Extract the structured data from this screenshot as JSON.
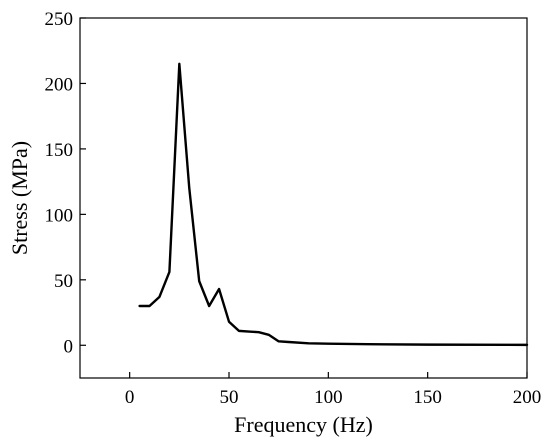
{
  "chart_data": {
    "type": "line",
    "title": "",
    "xlabel": "Frequency (Hz)",
    "ylabel": "Stress (MPa)",
    "xlim": [
      -25,
      200
    ],
    "ylim": [
      -25,
      250
    ],
    "xticks": [
      0,
      50,
      100,
      150,
      200
    ],
    "yticks": [
      0,
      50,
      100,
      150,
      200,
      250
    ],
    "grid": false,
    "legend": "none",
    "series": [
      {
        "color": "#000000",
        "x": [
          5,
          10,
          15,
          20,
          25,
          30,
          35,
          40,
          45,
          50,
          55,
          60,
          65,
          70,
          75,
          80,
          90,
          100,
          120,
          150,
          200
        ],
        "y": [
          30,
          30,
          37,
          56,
          215,
          120,
          49,
          30,
          43,
          18,
          11,
          10.5,
          10,
          8,
          3,
          2.5,
          1.5,
          1.2,
          0.8,
          0.5,
          0.3
        ]
      }
    ],
    "xtick_labels": [
      "0",
      "50",
      "100",
      "150",
      "200"
    ],
    "ytick_labels": [
      "0",
      "50",
      "100",
      "150",
      "200",
      "250"
    ]
  }
}
